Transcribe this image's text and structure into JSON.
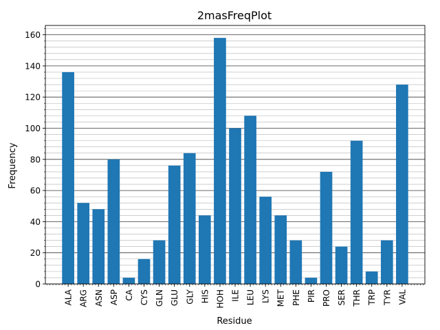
{
  "chart_data": {
    "type": "bar",
    "title": "2masFreqPlot",
    "xlabel": "Residue",
    "ylabel": "Frequency",
    "ylim": [
      0,
      166
    ],
    "y_ticks": [
      0,
      20,
      40,
      60,
      80,
      100,
      120,
      140,
      160
    ],
    "y_minor_step": 4,
    "grid": "horizontal major and minor",
    "bar_color": "#1f77b4",
    "categories": [
      "ALA",
      "ARG",
      "ASN",
      "ASP",
      "CA",
      "CYS",
      "GLN",
      "GLU",
      "GLY",
      "HIS",
      "HOH",
      "ILE",
      "LEU",
      "LYS",
      "MET",
      "PHE",
      "PIR",
      "PRO",
      "SER",
      "THR",
      "TRP",
      "TYR",
      "VAL"
    ],
    "values": [
      136,
      52,
      48,
      80,
      4,
      16,
      28,
      76,
      84,
      44,
      158,
      100,
      108,
      56,
      44,
      28,
      4,
      72,
      24,
      92,
      8,
      28,
      128
    ]
  }
}
